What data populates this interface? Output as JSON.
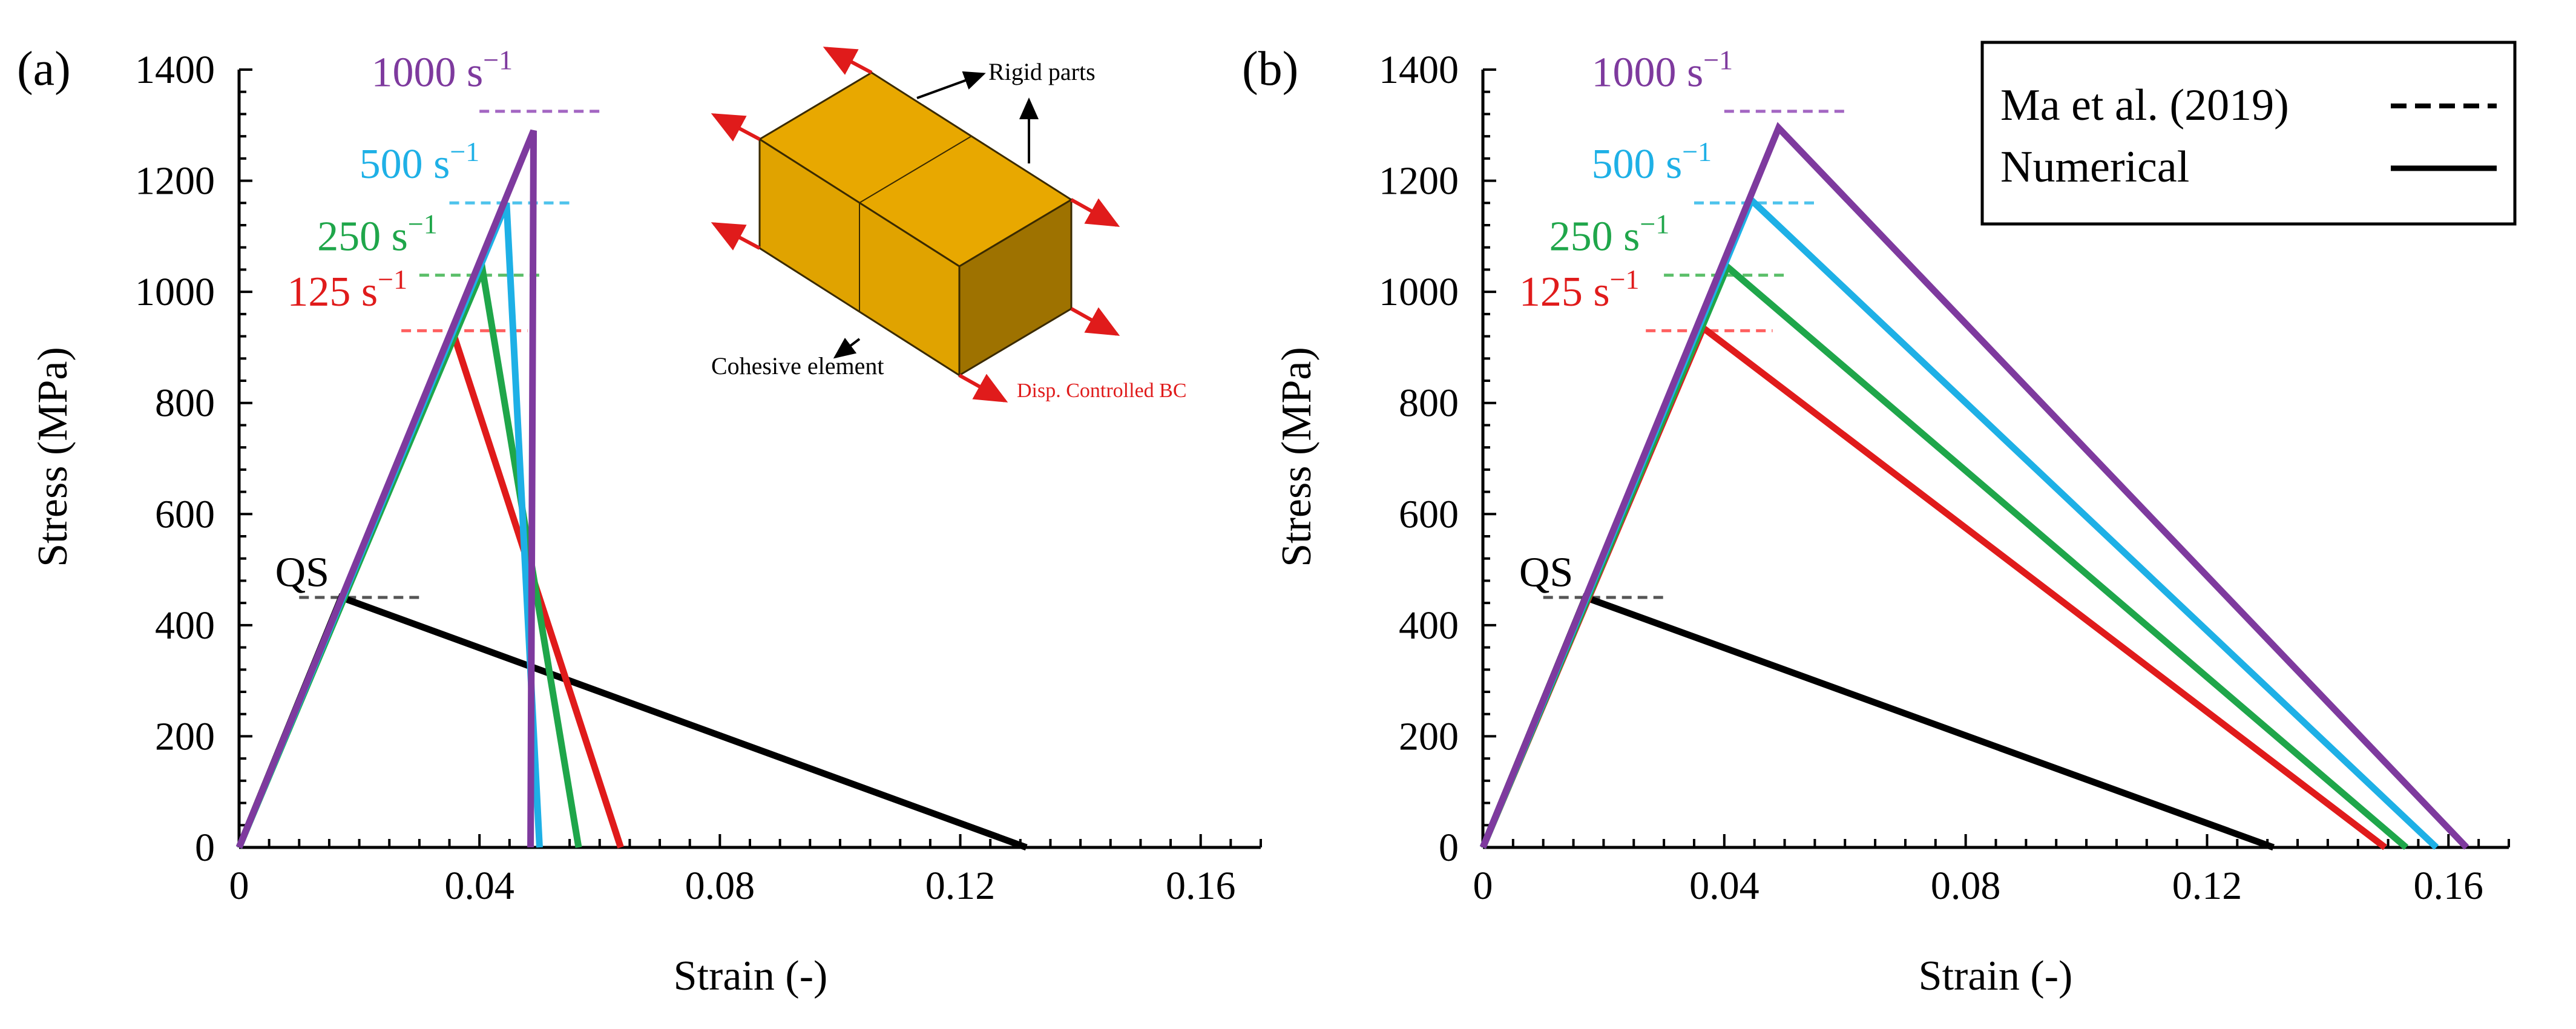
{
  "chart_data": [
    {
      "panel": "(a)",
      "type": "line",
      "xlabel": "Strain (-)",
      "ylabel": "Stress (MPa)",
      "xlim": [
        0,
        0.17
      ],
      "ylim": [
        0,
        1400
      ],
      "xticks": [
        0,
        0.04,
        0.08,
        0.12,
        0.16
      ],
      "xtick_labels": [
        "0",
        "0.04",
        "0.08",
        "0.12",
        "0.16"
      ],
      "yticks": [
        0,
        200,
        400,
        600,
        800,
        1000,
        1200,
        1400
      ],
      "ytick_labels": [
        "0",
        "200",
        "400",
        "600",
        "800",
        "1000",
        "1200",
        "1400"
      ],
      "series": [
        {
          "name": "QS",
          "label": "QS",
          "color": "#000000",
          "x": [
            0,
            0.017,
            0.131
          ],
          "y": [
            0,
            450,
            0
          ],
          "ref_x": [
            0.01,
            0.03
          ],
          "ref_y": 450,
          "ref_color": "#555555",
          "label_at": [
            0.006,
            470
          ]
        },
        {
          "name": "125 s-1",
          "label": "125 s",
          "label_sup": "−1",
          "color": "#e01b1b",
          "x": [
            0,
            0.0355,
            0.0635
          ],
          "y": [
            0,
            930,
            0
          ],
          "ref_x": [
            0.027,
            0.048
          ],
          "ref_y": 930,
          "ref_color": "#ff6060",
          "label_at": [
            0.008,
            975
          ]
        },
        {
          "name": "250 s-1",
          "label": "250 s",
          "label_sup": "−1",
          "color": "#1fa64a",
          "x": [
            0,
            0.0405,
            0.0565
          ],
          "y": [
            0,
            1040,
            0
          ],
          "ref_x": [
            0.03,
            0.05
          ],
          "ref_y": 1030,
          "ref_color": "#5cbf6a",
          "label_at": [
            0.013,
            1075
          ]
        },
        {
          "name": "500 s-1",
          "label": "500 s",
          "label_sup": "−1",
          "color": "#1eb0e6",
          "x": [
            0,
            0.0445,
            0.05
          ],
          "y": [
            0,
            1160,
            0
          ],
          "ref_x": [
            0.035,
            0.055
          ],
          "ref_y": 1160,
          "ref_color": "#4ec3ec",
          "label_at": [
            0.02,
            1205
          ]
        },
        {
          "name": "1000 s-1",
          "label": "1000 s",
          "label_sup": "−1",
          "color": "#7e3a9e",
          "x": [
            0,
            0.049,
            0.0485
          ],
          "y": [
            0,
            1290,
            0
          ],
          "ref_x": [
            0.04,
            0.06
          ],
          "ref_y": 1325,
          "ref_color": "#a366c2",
          "label_at": [
            0.022,
            1370
          ]
        }
      ],
      "inset": {
        "rigid_parts_label": "Rigid parts",
        "cohesive_label": "Cohesive element",
        "bc_label": "Disp. Controlled BC",
        "block_front_color": "#e0a300",
        "block_top_color": "#e8a800",
        "block_side_color": "#9e7200",
        "arrow_color": "#e01b1b"
      }
    },
    {
      "panel": "(b)",
      "type": "line",
      "xlabel": "Strain (-)",
      "ylabel": "Stress (MPa)",
      "xlim": [
        0,
        0.17
      ],
      "ylim": [
        0,
        1400
      ],
      "xticks": [
        0,
        0.04,
        0.08,
        0.12,
        0.16
      ],
      "xtick_labels": [
        "0",
        "0.04",
        "0.08",
        "0.12",
        "0.16"
      ],
      "yticks": [
        0,
        200,
        400,
        600,
        800,
        1000,
        1200,
        1400
      ],
      "ytick_labels": [
        "0",
        "200",
        "400",
        "600",
        "800",
        "1000",
        "1200",
        "1400"
      ],
      "series": [
        {
          "name": "QS",
          "label": "QS",
          "color": "#000000",
          "x": [
            0,
            0.017,
            0.131
          ],
          "y": [
            0,
            450,
            0
          ],
          "ref_x": [
            0.01,
            0.03
          ],
          "ref_y": 450,
          "ref_color": "#555555",
          "label_at": [
            0.006,
            470
          ]
        },
        {
          "name": "125 s-1",
          "label": "125 s",
          "label_sup": "−1",
          "color": "#e01b1b",
          "x": [
            0,
            0.0365,
            0.1495
          ],
          "y": [
            0,
            935,
            0
          ],
          "ref_x": [
            0.027,
            0.048
          ],
          "ref_y": 930,
          "ref_color": "#ff6060",
          "label_at": [
            0.006,
            975
          ]
        },
        {
          "name": "250 s-1",
          "label": "250 s",
          "label_sup": "−1",
          "color": "#1fa64a",
          "x": [
            0,
            0.0405,
            0.153
          ],
          "y": [
            0,
            1045,
            0
          ],
          "ref_x": [
            0.03,
            0.05
          ],
          "ref_y": 1030,
          "ref_color": "#5cbf6a",
          "label_at": [
            0.011,
            1075
          ]
        },
        {
          "name": "500 s-1",
          "label": "500 s",
          "label_sup": "−1",
          "color": "#1eb0e6",
          "x": [
            0,
            0.0445,
            0.158
          ],
          "y": [
            0,
            1165,
            0
          ],
          "ref_x": [
            0.035,
            0.055
          ],
          "ref_y": 1160,
          "ref_color": "#4ec3ec",
          "label_at": [
            0.018,
            1205
          ]
        },
        {
          "name": "1000 s-1",
          "label": "1000 s",
          "label_sup": "−1",
          "color": "#7e3a9e",
          "x": [
            0,
            0.049,
            0.163
          ],
          "y": [
            0,
            1295,
            0
          ],
          "ref_x": [
            0.04,
            0.06
          ],
          "ref_y": 1325,
          "ref_color": "#a366c2",
          "label_at": [
            0.018,
            1370
          ]
        }
      ],
      "legend": [
        {
          "label": "Ma et al. (2019)",
          "style": "dashed"
        },
        {
          "label": "Numerical",
          "style": "solid"
        }
      ]
    }
  ]
}
